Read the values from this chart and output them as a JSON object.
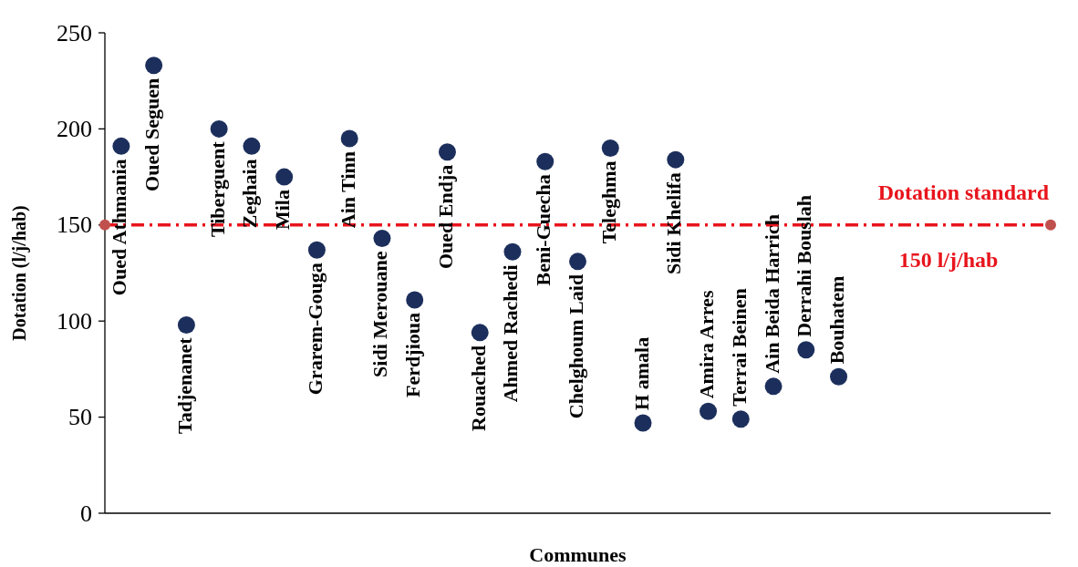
{
  "chart_data": {
    "type": "scatter",
    "xlabel": "Communes",
    "ylabel": "Dotation (l/j/hab)",
    "categories": [
      null,
      null,
      null,
      null,
      null,
      null,
      null,
      null,
      null,
      null,
      null,
      null,
      null,
      null,
      null,
      null,
      null,
      null,
      null,
      null,
      null,
      null,
      null,
      null,
      null,
      null,
      null,
      null,
      null
    ],
    "series": [
      {
        "color": "#1c2f5c",
        "values": [
          191,
          233,
          98,
          200,
          191,
          175,
          137,
          195,
          143,
          111,
          188,
          94,
          136,
          183,
          131,
          190,
          47,
          184,
          53,
          49,
          66,
          85,
          71,
          null,
          null,
          null,
          null,
          null,
          null
        ]
      }
    ],
    "value_labels": [
      "Oued Athmania",
      "Oued Seguen",
      "Tadjenanet",
      "Tiberguent",
      "Zeghaia",
      "Mila",
      "Grarem-Gouga",
      "Ain Tinn",
      "Sidi Merouane",
      "Ferdjioua",
      "Oued Endja",
      "Rouached",
      "Ahmed Rachedi",
      "Beni-Guecha",
      "Chelghoum Laid",
      "Teleghma",
      "H amala",
      "Sidi Khelifa",
      "Amira Arres",
      "Terrai Beinen",
      "Ain Beida Harrich",
      "Derrahi Bouslah",
      "Bouhatem"
    ],
    "ylim": [
      0,
      250
    ],
    "yticks": [
      0,
      50,
      100,
      150,
      200,
      250
    ],
    "marker": "circle",
    "grid": false,
    "ref_lines": [
      {
        "axis": "y",
        "value": 150,
        "label": "Dotation standard",
        "color": "#e8141c",
        "line_style": "dashed"
      }
    ],
    "annotations": [
      {
        "text": "150 l/j/hab",
        "y": 150
      }
    ]
  }
}
